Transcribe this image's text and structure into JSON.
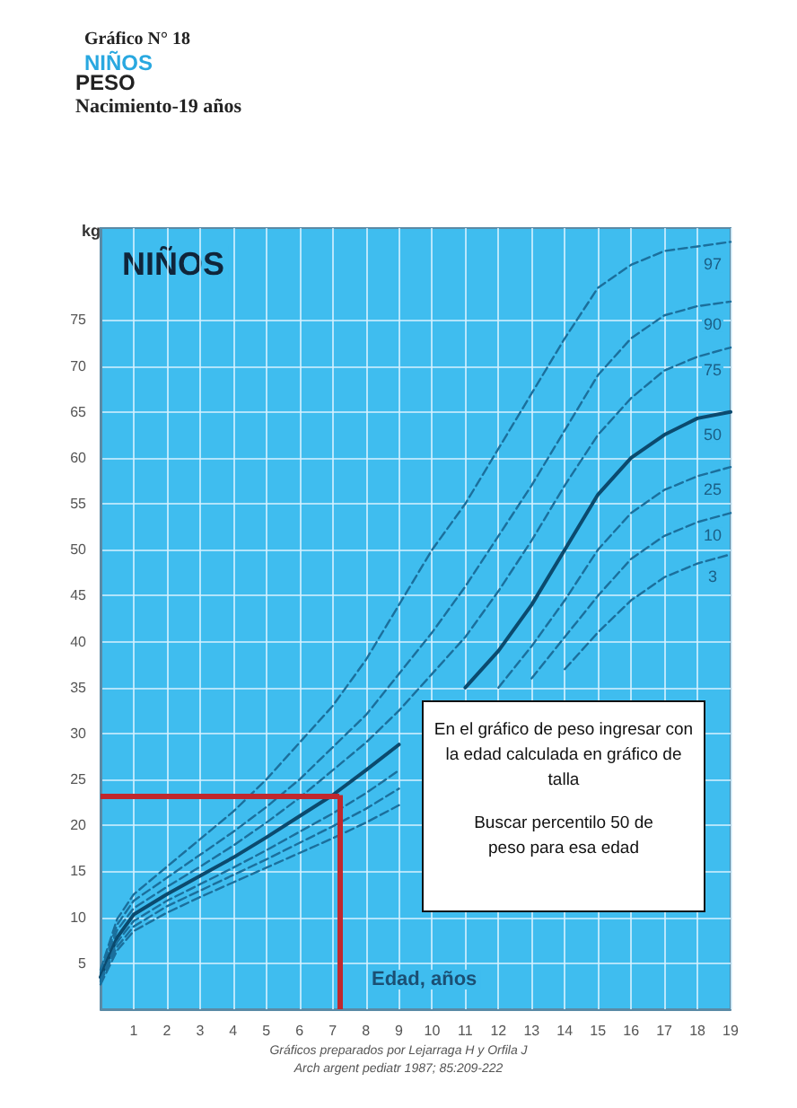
{
  "chart_data": {
    "type": "line",
    "title": "Gráfico N° 18",
    "subtitle": "NIÑOS",
    "xlabel": "Edad, años",
    "ylabel": "kg",
    "annotations": [
      "PESO",
      "Nacimiento-19 años",
      "NIÑOS",
      "En el gráfico de peso ingresar con la edad calculada en gráfico de talla",
      "Buscar percentilo 50 de peso para esa edad",
      "Gráficos preparados por Lejarraga H y Orfila J",
      "Arch argent pediatr 1987; 85:209-222"
    ],
    "x": [
      0,
      0.5,
      1,
      2,
      3,
      4,
      5,
      6,
      7,
      8,
      9,
      10,
      11,
      12,
      13,
      14,
      15,
      16,
      17,
      18,
      19
    ],
    "series": [
      {
        "name": "97",
        "color": "#1b6f9c",
        "line_style": "dashed",
        "values": [
          4.3,
          9.8,
          12.5,
          15.5,
          18.5,
          21.5,
          25,
          29,
          33,
          38,
          44,
          50,
          55,
          61,
          67,
          73,
          78.5,
          81,
          82.5,
          83,
          83.5
        ]
      },
      {
        "name": "90",
        "color": "#1b6f9c",
        "line_style": "dashed",
        "values": [
          4,
          9.2,
          11.8,
          14.3,
          16.8,
          19.3,
          22,
          25,
          28.5,
          32,
          36.5,
          41,
          46,
          51.5,
          57,
          63,
          69,
          73,
          75.5,
          76.5,
          77
        ]
      },
      {
        "name": "75",
        "color": "#1b6f9c",
        "line_style": "dashed",
        "values": [
          3.8,
          8.6,
          11,
          13.3,
          15.5,
          17.8,
          20.3,
          23,
          26,
          29,
          32.5,
          36.5,
          40.5,
          45.5,
          51,
          57,
          62.5,
          66.5,
          69.5,
          71,
          72
        ]
      },
      {
        "name": "50",
        "color": "#0b4a6e",
        "line_style": "solid",
        "values": [
          3.5,
          7.8,
          10.3,
          12.5,
          14.5,
          16.5,
          18.7,
          21,
          23.3,
          26,
          28.8,
          null,
          35,
          39,
          44,
          50,
          56,
          60,
          62.5,
          64.3,
          65
        ]
      },
      {
        "name": "25",
        "color": "#1b6f9c",
        "line_style": "dashed",
        "values": [
          3.2,
          7.3,
          9.6,
          11.8,
          13.6,
          15.4,
          17.3,
          19.3,
          21.3,
          23.5,
          26,
          null,
          null,
          35,
          39.5,
          44.5,
          50,
          54,
          56.5,
          58,
          59
        ]
      },
      {
        "name": "10",
        "color": "#1b6f9c",
        "line_style": "dashed",
        "values": [
          3,
          6.8,
          9,
          11.2,
          12.9,
          14.6,
          16.3,
          18.1,
          19.9,
          21.8,
          24,
          null,
          null,
          null,
          36,
          40.5,
          45,
          49,
          51.5,
          53,
          54
        ]
      },
      {
        "name": "3",
        "color": "#1b6f9c",
        "line_style": "dashed",
        "values": [
          2.7,
          6.4,
          8.5,
          10.5,
          12.2,
          13.8,
          15.4,
          17,
          18.6,
          20.3,
          22.2,
          null,
          null,
          null,
          null,
          37,
          41,
          44.5,
          47,
          48.5,
          49.5
        ]
      }
    ],
    "xlim": [
      0,
      19
    ],
    "xticks": [
      1,
      2,
      3,
      4,
      5,
      6,
      7,
      8,
      9,
      10,
      11,
      12,
      13,
      14,
      15,
      16,
      17,
      18,
      19
    ],
    "ylim": [
      0,
      85
    ],
    "yticks": [
      5,
      10,
      15,
      20,
      25,
      30,
      35,
      40,
      45,
      50,
      55,
      60,
      65,
      70,
      75
    ],
    "ref_lines": [
      {
        "axis": "x",
        "value": 7.2,
        "color": "#c0282d"
      },
      {
        "axis": "y",
        "value": 23.3,
        "color": "#c0282d"
      }
    ],
    "grid": true,
    "legend": false,
    "marker": "none"
  }
}
